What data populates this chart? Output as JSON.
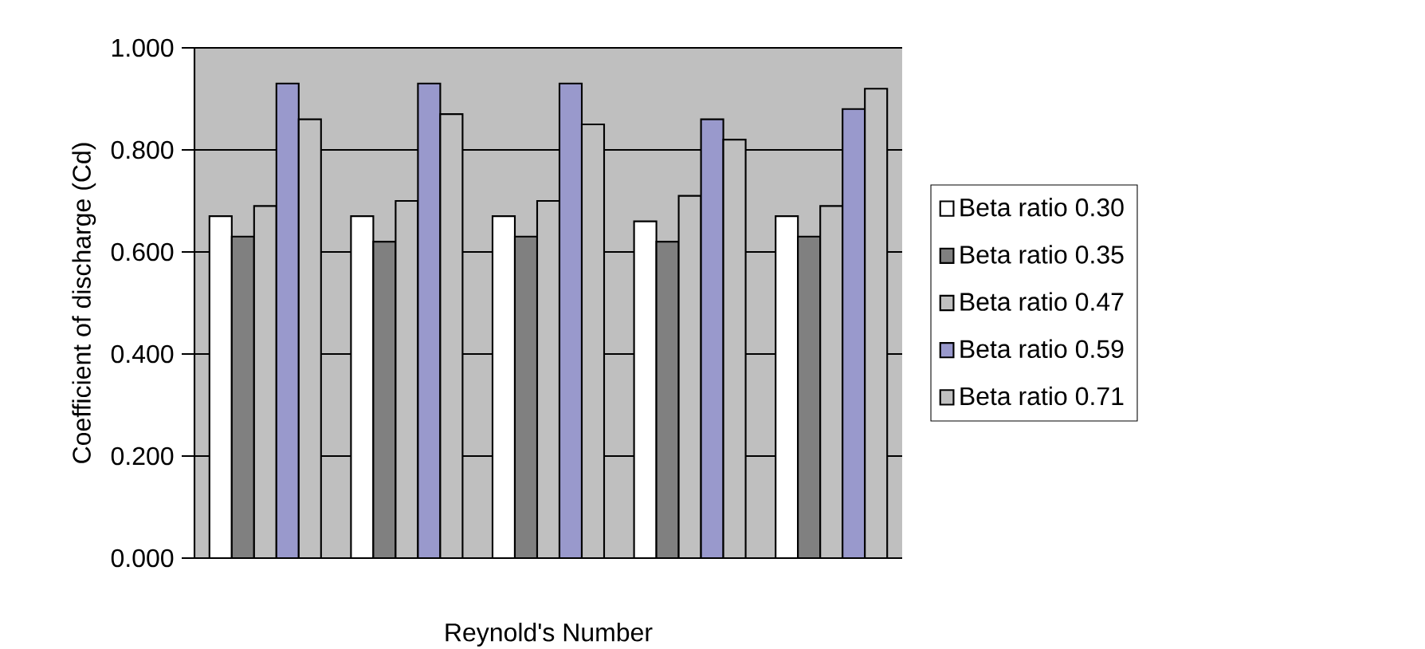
{
  "chart_data": {
    "type": "bar",
    "xlabel": "Reynold's Number",
    "ylabel": "Coefficient of discharge (Cd)",
    "categories": [
      null,
      null,
      null,
      null,
      null
    ],
    "series": [
      {
        "name": "Beta ratio 0.30",
        "color": "#ffffff",
        "values": [
          0.67,
          0.67,
          0.67,
          0.66,
          0.67
        ]
      },
      {
        "name": "Beta ratio 0.35",
        "color": "#808080",
        "values": [
          0.63,
          0.62,
          0.63,
          0.62,
          0.63
        ]
      },
      {
        "name": "Beta ratio 0.47",
        "color": "#c0c0c0",
        "values": [
          0.69,
          0.7,
          0.7,
          0.71,
          0.69
        ]
      },
      {
        "name": "Beta ratio 0.59",
        "color": "#9999cc",
        "values": [
          0.93,
          0.93,
          0.93,
          0.86,
          0.88
        ]
      },
      {
        "name": "Beta ratio 0.71",
        "color": "#c0c0c0",
        "values": [
          0.86,
          0.87,
          0.85,
          0.82,
          0.92
        ]
      }
    ],
    "ylim": [
      0,
      1
    ],
    "yticks": [
      {
        "value": 0,
        "label": "0.000"
      },
      {
        "value": 0.2,
        "label": "0.200"
      },
      {
        "value": 0.4,
        "label": "0.400"
      },
      {
        "value": 0.6,
        "label": "0.600"
      },
      {
        "value": 0.8,
        "label": "0.800"
      },
      {
        "value": 1,
        "label": "1.000"
      }
    ],
    "grid": "y",
    "legend": "right"
  }
}
